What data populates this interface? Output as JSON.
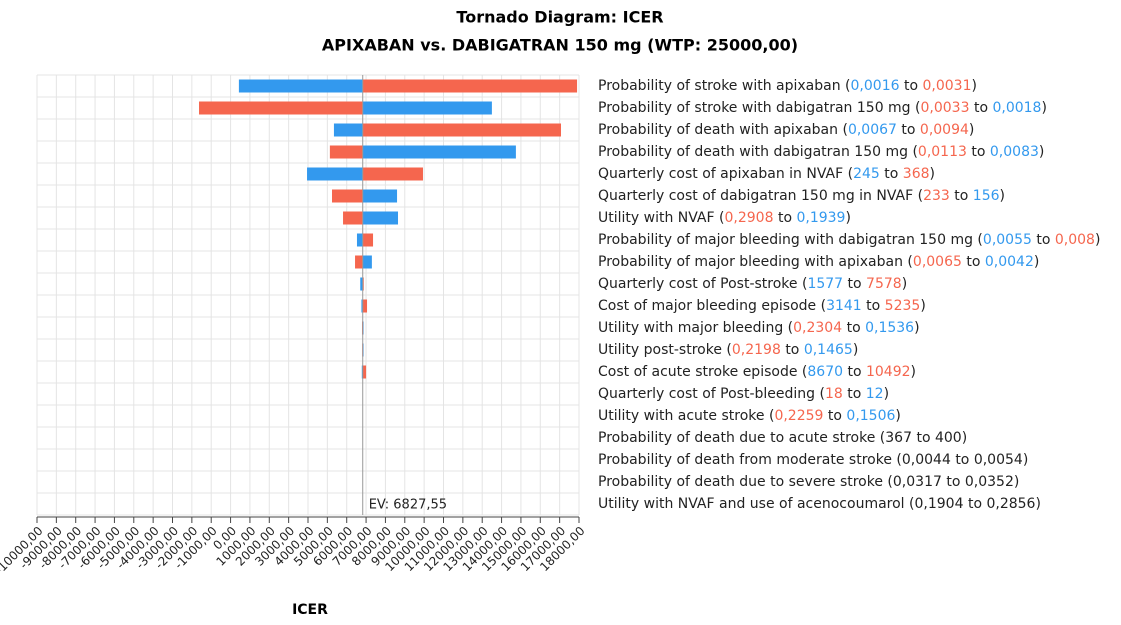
{
  "chart_data": {
    "type": "tornado",
    "title": "Tornado Diagram: ICER",
    "subtitle": "APIXABAN vs. DABIGATRAN 150 mg (WTP: 25000,00)",
    "x_label": "ICER",
    "ev": 6827.55,
    "ev_label": "EV: 6827,55",
    "connector": "to",
    "xlim": [
      -10000,
      18000
    ],
    "xticks": [
      {
        "value": -10000,
        "label": "-10000,00"
      },
      {
        "value": -9000,
        "label": "-9000,00"
      },
      {
        "value": -8000,
        "label": "-8000,00"
      },
      {
        "value": -7000,
        "label": "-7000,00"
      },
      {
        "value": -6000,
        "label": "-6000,00"
      },
      {
        "value": -5000,
        "label": "-5000,00"
      },
      {
        "value": -4000,
        "label": "-4000,00"
      },
      {
        "value": -3000,
        "label": "-3000,00"
      },
      {
        "value": -2000,
        "label": "-2000,00"
      },
      {
        "value": -1000,
        "label": "-1000,00"
      },
      {
        "value": 0,
        "label": "0,00"
      },
      {
        "value": 1000,
        "label": "1000,00"
      },
      {
        "value": 2000,
        "label": "2000,00"
      },
      {
        "value": 3000,
        "label": "3000,00"
      },
      {
        "value": 4000,
        "label": "4000,00"
      },
      {
        "value": 5000,
        "label": "5000,00"
      },
      {
        "value": 6000,
        "label": "6000,00"
      },
      {
        "value": 7000,
        "label": "7000,00"
      },
      {
        "value": 8000,
        "label": "8000,00"
      },
      {
        "value": 9000,
        "label": "9000,00"
      },
      {
        "value": 10000,
        "label": "10000,00"
      },
      {
        "value": 11000,
        "label": "11000,00"
      },
      {
        "value": 12000,
        "label": "12000,00"
      },
      {
        "value": 13000,
        "label": "13000,00"
      },
      {
        "value": 14000,
        "label": "14000,00"
      },
      {
        "value": 15000,
        "label": "15000,00"
      },
      {
        "value": 16000,
        "label": "16000,00"
      },
      {
        "value": 17000,
        "label": "17000,00"
      },
      {
        "value": 18000,
        "label": "18000,00"
      }
    ],
    "grid": true,
    "rows": [
      {
        "parameter": "Probability of stroke with apixaban",
        "from": "0,0016",
        "to": "0,0031",
        "from_value": 430,
        "to_value": 17900,
        "from_color": "#3399ee",
        "to_color": "#f5664e"
      },
      {
        "parameter": "Probability of stroke with dabigatran 150 mg",
        "from": "0,0033",
        "to": "0,0018",
        "from_value": -1630,
        "to_value": 13500,
        "from_color": "#f5664e",
        "to_color": "#3399ee"
      },
      {
        "parameter": "Probability of death with apixaban",
        "from": "0,0067",
        "to": "0,0094",
        "from_value": 5340,
        "to_value": 17070,
        "from_color": "#3399ee",
        "to_color": "#f5664e"
      },
      {
        "parameter": "Probability of death with dabigatran 150 mg",
        "from": "0,0113",
        "to": "0,0083",
        "from_value": 5130,
        "to_value": 14740,
        "from_color": "#f5664e",
        "to_color": "#3399ee"
      },
      {
        "parameter": "Quarterly cost of apixaban in NVAF",
        "from": "245",
        "to": "368",
        "from_value": 3950,
        "to_value": 9940,
        "from_color": "#3399ee",
        "to_color": "#f5664e"
      },
      {
        "parameter": "Quarterly cost of dabigatran 150 mg in NVAF",
        "from": "233",
        "to": "156",
        "from_value": 5240,
        "to_value": 8600,
        "from_color": "#f5664e",
        "to_color": "#3399ee"
      },
      {
        "parameter": "Utility with NVAF",
        "from": "0,2908",
        "to": "0,1939",
        "from_value": 5810,
        "to_value": 8650,
        "from_color": "#f5664e",
        "to_color": "#3399ee"
      },
      {
        "parameter": "Probability of major bleeding with dabigatran 150 mg",
        "from": "0,0055",
        "to": "0,008",
        "from_value": 6530,
        "to_value": 7360,
        "from_color": "#3399ee",
        "to_color": "#f5664e"
      },
      {
        "parameter": "Probability of major bleeding with apixaban",
        "from": "0,0065",
        "to": "0,0042",
        "from_value": 6430,
        "to_value": 7300,
        "from_color": "#f5664e",
        "to_color": "#3399ee"
      },
      {
        "parameter": "Quarterly cost of Post-stroke",
        "from": "1577",
        "to": "7578",
        "from_value": 6700,
        "to_value": 6880,
        "from_color": "#3399ee",
        "to_color": "#f5664e"
      },
      {
        "parameter": "Cost of major bleeding episode",
        "from": "3141",
        "to": "5235",
        "from_value": 6760,
        "to_value": 7050,
        "from_color": "#3399ee",
        "to_color": "#f5664e"
      },
      {
        "parameter": "Utility with major bleeding",
        "from": "0,2304",
        "to": "0,1536",
        "from_value": 6790,
        "to_value": 6870,
        "from_color": "#f5664e",
        "to_color": "#3399ee"
      },
      {
        "parameter": "Utility post-stroke",
        "from": "0,2198",
        "to": "0,1465",
        "from_value": 6800,
        "to_value": 6870,
        "from_color": "#f5664e",
        "to_color": "#3399ee"
      },
      {
        "parameter": "Cost of acute stroke episode",
        "from": "8670",
        "to": "10492",
        "from_value": 6780,
        "to_value": 7000,
        "from_color": "#3399ee",
        "to_color": "#f5664e"
      },
      {
        "parameter": "Quarterly cost of Post-bleeding",
        "from": "18",
        "to": "12",
        "from_value": 6827.55,
        "to_value": 6827.55,
        "from_color": "#f5664e",
        "to_color": "#3399ee"
      },
      {
        "parameter": "Utility with acute stroke",
        "from": "0,2259",
        "to": "0,1506",
        "from_value": 6827.55,
        "to_value": 6827.55,
        "from_color": "#f5664e",
        "to_color": "#3399ee"
      },
      {
        "parameter": "Probability of death due to acute stroke",
        "from": "367",
        "to": "400",
        "from_value": 6827.55,
        "to_value": 6827.55,
        "from_color": "#222222",
        "to_color": "#222222"
      },
      {
        "parameter": "Probability of death from moderate stroke",
        "from": "0,0044",
        "to": "0,0054",
        "from_value": 6827.55,
        "to_value": 6827.55,
        "from_color": "#222222",
        "to_color": "#222222"
      },
      {
        "parameter": "Probability of death due to severe stroke",
        "from": "0,0317",
        "to": "0,0352",
        "from_value": 6827.55,
        "to_value": 6827.55,
        "from_color": "#222222",
        "to_color": "#222222"
      },
      {
        "parameter": "Utility with NVAF and use of acenocoumarol",
        "from": "0,1904",
        "to": "0,2856",
        "from_value": 6827.55,
        "to_value": 6827.55,
        "from_color": "#222222",
        "to_color": "#222222"
      }
    ]
  }
}
